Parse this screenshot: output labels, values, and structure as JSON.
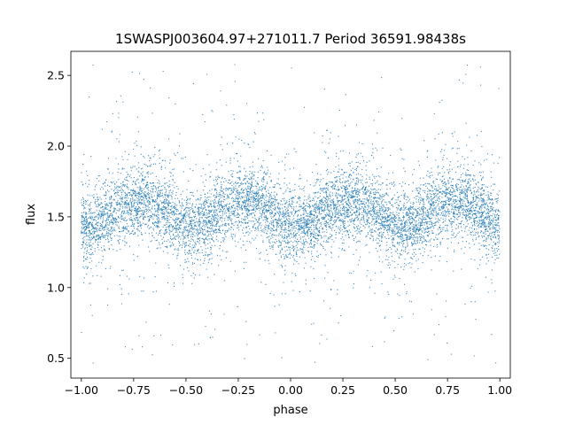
{
  "chart_data": {
    "type": "scatter",
    "title": "1SWASPJ003604.97+271011.7 Period 36591.98438s",
    "xlabel": "phase",
    "ylabel": "flux",
    "xlim": [
      -1.05,
      1.05
    ],
    "ylim": [
      0.36,
      2.67
    ],
    "x_ticks": [
      -1.0,
      -0.75,
      -0.5,
      -0.25,
      0.0,
      0.25,
      0.5,
      0.75,
      1.0
    ],
    "x_tick_labels": [
      "−1.00",
      "−0.75",
      "−0.50",
      "−0.25",
      "0.00",
      "0.25",
      "0.50",
      "0.75",
      "1.00"
    ],
    "y_ticks": [
      0.5,
      1.0,
      1.5,
      2.0,
      2.5
    ],
    "y_tick_labels": [
      "0.5",
      "1.0",
      "1.5",
      "2.0",
      "2.5"
    ],
    "grid": false,
    "point_color": "#1f77b4",
    "series": [
      {
        "x_range": [
          -1.0,
          1.0
        ],
        "trend_x": [
          -1.0,
          -0.95,
          -0.9,
          -0.85,
          -0.8,
          -0.75,
          -0.7,
          -0.65,
          -0.6,
          -0.55,
          -0.5,
          -0.45,
          -0.4,
          -0.35,
          -0.3,
          -0.25,
          -0.2,
          -0.15,
          -0.1,
          -0.05,
          0.0,
          0.05,
          0.1,
          0.15,
          0.2,
          0.25,
          0.3,
          0.35,
          0.4,
          0.45,
          0.5,
          0.55,
          0.6,
          0.65,
          0.7,
          0.75,
          0.8,
          0.85,
          0.9,
          0.95,
          1.0
        ],
        "trend_y": [
          1.44,
          1.43,
          1.46,
          1.52,
          1.57,
          1.6,
          1.61,
          1.59,
          1.54,
          1.48,
          1.44,
          1.43,
          1.46,
          1.52,
          1.57,
          1.6,
          1.61,
          1.59,
          1.54,
          1.48,
          1.44,
          1.43,
          1.46,
          1.52,
          1.57,
          1.6,
          1.61,
          1.59,
          1.54,
          1.48,
          1.44,
          1.43,
          1.46,
          1.52,
          1.57,
          1.6,
          1.61,
          1.59,
          1.54,
          1.48,
          1.44
        ],
        "core_spread": 0.12,
        "outlier_range": [
          0.45,
          2.58
        ]
      }
    ]
  }
}
